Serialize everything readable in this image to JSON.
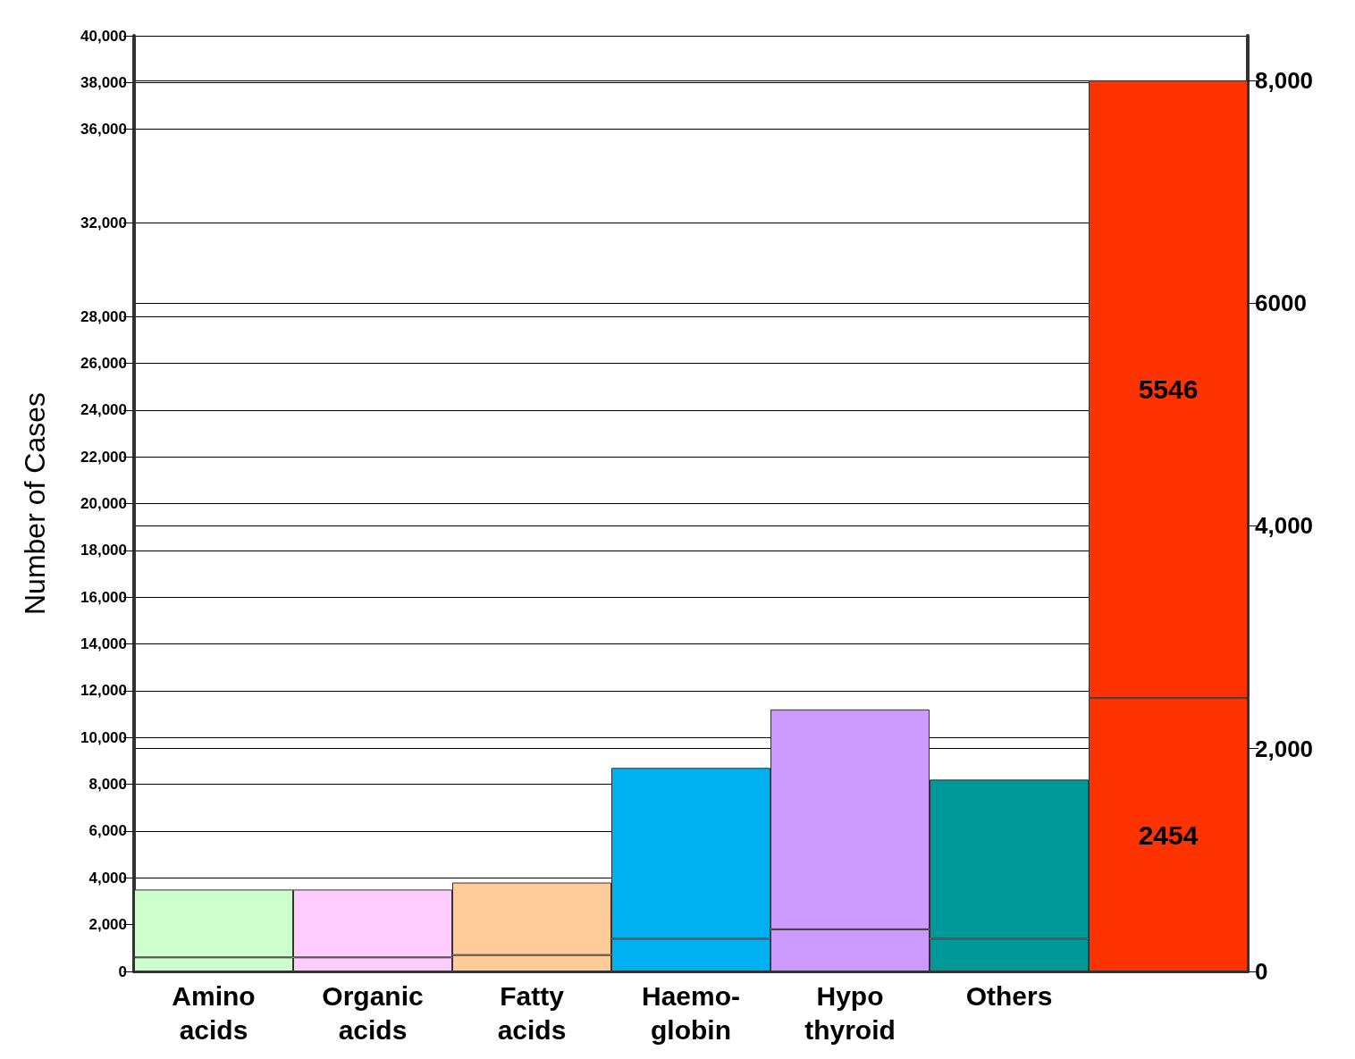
{
  "chart_data": {
    "type": "bar",
    "stacked": true,
    "ylabel": "Number of Cases",
    "categories": [
      "Amino\nacids",
      "Organic\nacids",
      "Fatty\nacids",
      "Haemo-\nglobin",
      "Hypo\nthyroid",
      "Others",
      null
    ],
    "series": [
      {
        "colors": [
          "#ccffcc",
          "#ffccff",
          "#ffcc99",
          "#00b0f0",
          "#cc99ff",
          "#009999",
          null
        ],
        "values": [
          600,
          600,
          700,
          1400,
          1800,
          1400,
          null
        ]
      },
      {
        "colors": [
          "#ccffcc",
          "#ffccff",
          "#ffcc99",
          "#00b0f0",
          "#cc99ff",
          "#009999",
          null
        ],
        "values": [
          2900,
          2900,
          3100,
          7300,
          9400,
          6800,
          null
        ]
      },
      {
        "color": "#ff3300",
        "axis": "y2",
        "values": [
          null,
          null,
          null,
          null,
          null,
          null,
          2454
        ],
        "value_labels": [
          null,
          null,
          null,
          null,
          null,
          null,
          "2454"
        ]
      },
      {
        "color": "#ff3300",
        "axis": "y2",
        "values": [
          null,
          null,
          null,
          null,
          null,
          null,
          5546
        ],
        "value_labels": [
          null,
          null,
          null,
          null,
          null,
          null,
          "5546"
        ]
      }
    ],
    "ylim": [
      0,
      40000
    ],
    "yticks": [
      0,
      {
        "value": 2000,
        "label": "2,000"
      },
      {
        "value": 4000,
        "label": "4,000"
      },
      {
        "value": 6000,
        "label": "6,000"
      },
      {
        "value": 8000,
        "label": "8,000"
      },
      {
        "value": 10000,
        "label": "10,000"
      },
      {
        "value": 12000,
        "label": "12,000"
      },
      {
        "value": 14000,
        "label": "14,000"
      },
      {
        "value": 16000,
        "label": "16,000"
      },
      {
        "value": 18000,
        "label": "18,000"
      },
      {
        "value": 20000,
        "label": "20,000"
      },
      {
        "value": 22000,
        "label": "22,000"
      },
      {
        "value": 24000,
        "label": "24,000"
      },
      {
        "value": 26000,
        "label": "26,000"
      },
      {
        "value": 28000,
        "label": "28,000"
      },
      {
        "value": 32000,
        "label": "32,000"
      },
      {
        "value": 36000,
        "label": "36,000"
      },
      {
        "value": 38000,
        "label": "38,000"
      },
      {
        "value": 40000,
        "label": "40,000"
      }
    ],
    "y2lim": [
      0,
      8400
    ],
    "y2ticks": [
      0,
      {
        "value": 2000,
        "label": "2,000"
      },
      {
        "value": 4000,
        "label": "4,000"
      },
      {
        "value": 6000,
        "label": "6000"
      },
      {
        "value": 8000,
        "label": "8,000"
      }
    ],
    "grid": true
  }
}
